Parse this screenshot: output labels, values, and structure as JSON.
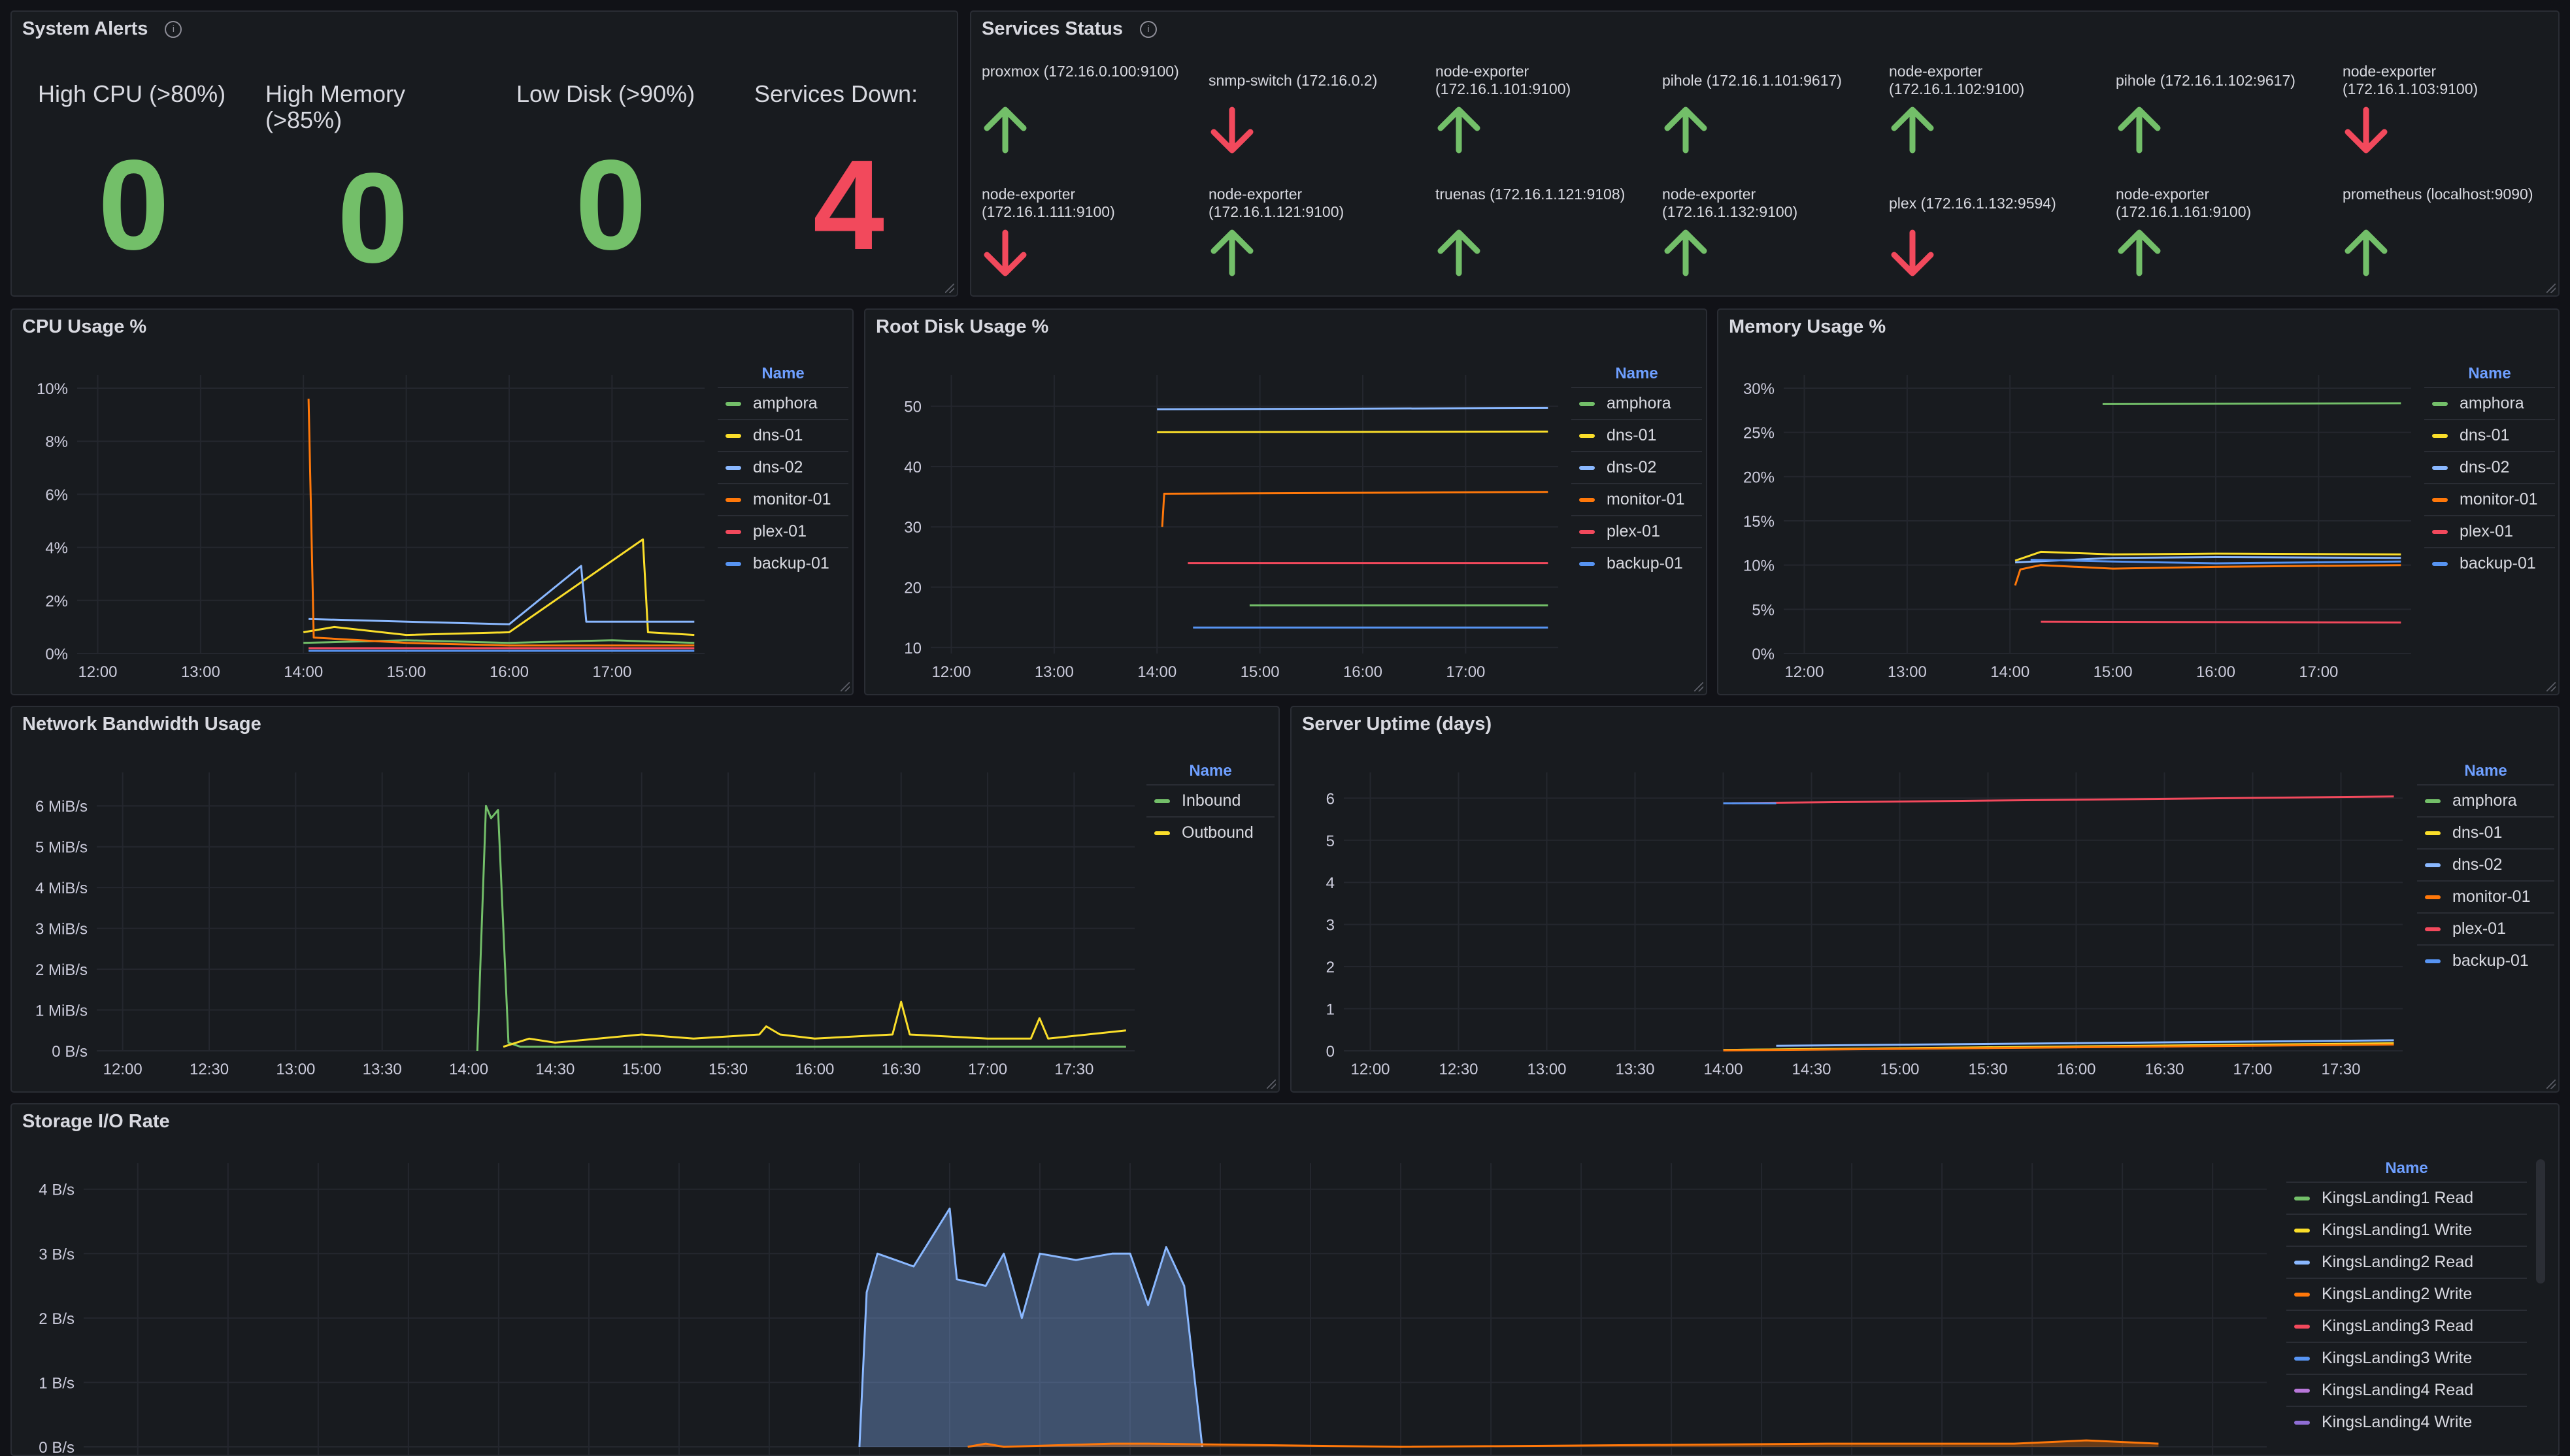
{
  "system_alerts": {
    "title": "System Alerts",
    "items": [
      {
        "label": "High CPU (>80%)",
        "value": "0",
        "color": "#73bf69"
      },
      {
        "label": "High Memory (>85%)",
        "value": "0",
        "color": "#73bf69"
      },
      {
        "label": "Low Disk (>90%)",
        "value": "0",
        "color": "#73bf69"
      },
      {
        "label": "Services Down:",
        "value": "4",
        "color": "#f2495c"
      }
    ]
  },
  "services_status": {
    "title": "Services Status",
    "services": [
      {
        "name": "proxmox (172.16.0.100:9100)",
        "status": "up"
      },
      {
        "name": "snmp-switch (172.16.0.2)",
        "status": "down"
      },
      {
        "name": "node-exporter (172.16.1.101:9100)",
        "status": "up"
      },
      {
        "name": "pihole (172.16.1.101:9617)",
        "status": "up"
      },
      {
        "name": "node-exporter (172.16.1.102:9100)",
        "status": "up"
      },
      {
        "name": "pihole (172.16.1.102:9617)",
        "status": "up"
      },
      {
        "name": "node-exporter (172.16.1.103:9100)",
        "status": "down"
      },
      {
        "name": "node-exporter (172.16.1.111:9100)",
        "status": "down"
      },
      {
        "name": "node-exporter (172.16.1.121:9100)",
        "status": "up"
      },
      {
        "name": "truenas (172.16.1.121:9108)",
        "status": "up"
      },
      {
        "name": "node-exporter (172.16.1.132:9100)",
        "status": "up"
      },
      {
        "name": "plex (172.16.1.132:9594)",
        "status": "down"
      },
      {
        "name": "node-exporter (172.16.1.161:9100)",
        "status": "up"
      },
      {
        "name": "prometheus (localhost:9090)",
        "status": "up"
      }
    ],
    "up_color": "#73bf69",
    "down_color": "#f2495c"
  },
  "chart_data": [
    {
      "id": "cpu",
      "type": "line",
      "title": "CPU Usage %",
      "x_ticks": [
        "12:00",
        "13:00",
        "14:00",
        "15:00",
        "16:00",
        "17:00"
      ],
      "y_ticks": [
        "0%",
        "2%",
        "4%",
        "6%",
        "8%",
        "10%"
      ],
      "ylim": [
        0,
        10
      ],
      "legend_title": "Name",
      "series": [
        {
          "name": "amphora",
          "color": "#73bf69",
          "values": [
            [
              14.0,
              0.4
            ],
            [
              15.0,
              0.5
            ],
            [
              16.0,
              0.4
            ],
            [
              17.0,
              0.5
            ],
            [
              17.8,
              0.4
            ]
          ]
        },
        {
          "name": "dns-01",
          "color": "#fade2a",
          "values": [
            [
              14.0,
              0.8
            ],
            [
              14.3,
              1.0
            ],
            [
              15.0,
              0.7
            ],
            [
              16.0,
              0.8
            ],
            [
              17.3,
              4.3
            ],
            [
              17.35,
              0.8
            ],
            [
              17.8,
              0.7
            ]
          ]
        },
        {
          "name": "dns-02",
          "color": "#8ab8ff",
          "values": [
            [
              14.05,
              1.3
            ],
            [
              15.0,
              1.2
            ],
            [
              16.0,
              1.1
            ],
            [
              16.7,
              3.3
            ],
            [
              16.75,
              1.2
            ],
            [
              17.8,
              1.2
            ]
          ]
        },
        {
          "name": "monitor-01",
          "color": "#ff780a",
          "values": [
            [
              14.05,
              9.6
            ],
            [
              14.1,
              0.6
            ],
            [
              15.0,
              0.4
            ],
            [
              16.0,
              0.3
            ],
            [
              17.8,
              0.3
            ]
          ]
        },
        {
          "name": "plex-01",
          "color": "#f2495c",
          "values": [
            [
              14.05,
              0.2
            ],
            [
              15.0,
              0.2
            ],
            [
              16.0,
              0.2
            ],
            [
              17.8,
              0.2
            ]
          ]
        },
        {
          "name": "backup-01",
          "color": "#5794f2",
          "values": [
            [
              14.05,
              0.1
            ],
            [
              15.0,
              0.1
            ],
            [
              16.0,
              0.1
            ],
            [
              17.8,
              0.1
            ]
          ]
        }
      ]
    },
    {
      "id": "disk",
      "type": "line",
      "title": "Root Disk Usage %",
      "x_ticks": [
        "12:00",
        "13:00",
        "14:00",
        "15:00",
        "16:00",
        "17:00"
      ],
      "y_ticks": [
        "10",
        "20",
        "30",
        "40",
        "50"
      ],
      "ylim": [
        9,
        53
      ],
      "legend_title": "Name",
      "series": [
        {
          "name": "amphora",
          "color": "#73bf69",
          "values": [
            [
              14.9,
              17.0
            ],
            [
              17.8,
              17.0
            ]
          ]
        },
        {
          "name": "dns-01",
          "color": "#fade2a",
          "values": [
            [
              14.0,
              45.7
            ],
            [
              17.8,
              45.8
            ]
          ]
        },
        {
          "name": "dns-02",
          "color": "#8ab8ff",
          "values": [
            [
              14.0,
              49.5
            ],
            [
              17.8,
              49.7
            ]
          ]
        },
        {
          "name": "monitor-01",
          "color": "#ff780a",
          "values": [
            [
              14.05,
              30.0
            ],
            [
              14.07,
              35.5
            ],
            [
              17.8,
              35.8
            ]
          ]
        },
        {
          "name": "plex-01",
          "color": "#f2495c",
          "values": [
            [
              14.3,
              24.0
            ],
            [
              17.8,
              24.0
            ]
          ]
        },
        {
          "name": "backup-01",
          "color": "#5794f2",
          "values": [
            [
              14.35,
              13.3
            ],
            [
              17.8,
              13.3
            ]
          ]
        }
      ]
    },
    {
      "id": "mem",
      "type": "line",
      "title": "Memory Usage %",
      "x_ticks": [
        "12:00",
        "13:00",
        "14:00",
        "15:00",
        "16:00",
        "17:00"
      ],
      "y_ticks": [
        "0%",
        "5%",
        "10%",
        "15%",
        "20%",
        "25%",
        "30%"
      ],
      "ylim": [
        0,
        30
      ],
      "legend_title": "Name",
      "series": [
        {
          "name": "amphora",
          "color": "#73bf69",
          "values": [
            [
              14.9,
              28.2
            ],
            [
              17.8,
              28.3
            ]
          ]
        },
        {
          "name": "dns-01",
          "color": "#fade2a",
          "values": [
            [
              14.05,
              10.5
            ],
            [
              14.3,
              11.5
            ],
            [
              15.0,
              11.2
            ],
            [
              16.0,
              11.3
            ],
            [
              17.8,
              11.2
            ]
          ]
        },
        {
          "name": "dns-02",
          "color": "#8ab8ff",
          "values": [
            [
              14.05,
              10.3
            ],
            [
              15.0,
              10.8
            ],
            [
              16.0,
              10.9
            ],
            [
              17.8,
              10.8
            ]
          ]
        },
        {
          "name": "monitor-01",
          "color": "#ff780a",
          "values": [
            [
              14.05,
              7.7
            ],
            [
              14.1,
              9.5
            ],
            [
              14.3,
              10.0
            ],
            [
              15.0,
              9.6
            ],
            [
              16.0,
              9.8
            ],
            [
              17.8,
              10.0
            ]
          ]
        },
        {
          "name": "plex-01",
          "color": "#f2495c",
          "values": [
            [
              14.3,
              3.6
            ],
            [
              17.8,
              3.5
            ]
          ]
        },
        {
          "name": "backup-01",
          "color": "#5794f2",
          "values": [
            [
              14.2,
              10.6
            ],
            [
              15.0,
              10.4
            ],
            [
              16.0,
              10.2
            ],
            [
              17.8,
              10.4
            ]
          ]
        }
      ]
    },
    {
      "id": "net",
      "type": "line",
      "title": "Network Bandwidth Usage",
      "x_ticks": [
        "12:00",
        "12:30",
        "13:00",
        "13:30",
        "14:00",
        "14:30",
        "15:00",
        "15:30",
        "16:00",
        "16:30",
        "17:00",
        "17:30"
      ],
      "y_ticks": [
        "0 B/s",
        "1 MiB/s",
        "2 MiB/s",
        "3 MiB/s",
        "4 MiB/s",
        "5 MiB/s",
        "6 MiB/s"
      ],
      "ylim": [
        0,
        6.5
      ],
      "legend_title": "Name",
      "series": [
        {
          "name": "Inbound",
          "color": "#73bf69",
          "values": [
            [
              14.05,
              0
            ],
            [
              14.1,
              6.0
            ],
            [
              14.13,
              5.7
            ],
            [
              14.17,
              5.9
            ],
            [
              14.23,
              0.2
            ],
            [
              14.3,
              0.1
            ],
            [
              17.8,
              0.1
            ]
          ]
        },
        {
          "name": "Outbound",
          "color": "#fade2a",
          "values": [
            [
              14.2,
              0.1
            ],
            [
              14.35,
              0.3
            ],
            [
              14.5,
              0.2
            ],
            [
              15.0,
              0.4
            ],
            [
              15.3,
              0.3
            ],
            [
              15.68,
              0.4
            ],
            [
              15.72,
              0.6
            ],
            [
              15.8,
              0.4
            ],
            [
              16.0,
              0.3
            ],
            [
              16.45,
              0.4
            ],
            [
              16.5,
              1.2
            ],
            [
              16.55,
              0.4
            ],
            [
              17.0,
              0.3
            ],
            [
              17.25,
              0.3
            ],
            [
              17.3,
              0.8
            ],
            [
              17.35,
              0.3
            ],
            [
              17.8,
              0.5
            ]
          ]
        }
      ]
    },
    {
      "id": "uptime",
      "type": "line",
      "title": "Server Uptime (days)",
      "x_ticks": [
        "12:00",
        "12:30",
        "13:00",
        "13:30",
        "14:00",
        "14:30",
        "15:00",
        "15:30",
        "16:00",
        "16:30",
        "17:00",
        "17:30"
      ],
      "y_ticks": [
        "0",
        "1",
        "2",
        "3",
        "4",
        "5",
        "6"
      ],
      "ylim": [
        0,
        6.3
      ],
      "legend_title": "Name",
      "series": [
        {
          "name": "amphora",
          "color": "#73bf69",
          "values": [
            [
              14.0,
              0.02
            ],
            [
              17.8,
              0.17
            ]
          ]
        },
        {
          "name": "dns-01",
          "color": "#fade2a",
          "values": [
            [
              14.0,
              0.02
            ],
            [
              17.8,
              0.18
            ]
          ]
        },
        {
          "name": "dns-02",
          "color": "#8ab8ff",
          "values": [
            [
              14.3,
              0.12
            ],
            [
              17.8,
              0.25
            ]
          ]
        },
        {
          "name": "monitor-01",
          "color": "#ff780a",
          "values": [
            [
              14.0,
              0.01
            ],
            [
              17.8,
              0.15
            ]
          ]
        },
        {
          "name": "plex-01",
          "color": "#f2495c",
          "values": [
            [
              14.05,
              5.88
            ],
            [
              17.8,
              6.04
            ]
          ]
        },
        {
          "name": "backup-01",
          "color": "#5794f2",
          "values": [
            [
              14.0,
              5.88
            ],
            [
              14.3,
              5.88
            ]
          ]
        }
      ]
    },
    {
      "id": "storage",
      "type": "area",
      "title": "Storage I/O Rate",
      "y_ticks": [
        "0 B/s",
        "1 B/s",
        "2 B/s",
        "3 B/s",
        "4 B/s"
      ],
      "ylim": [
        0,
        4.2
      ],
      "legend_title": "Name",
      "series": [
        {
          "name": "KingsLanding1 Read",
          "color": "#73bf69",
          "values": []
        },
        {
          "name": "KingsLanding1 Write",
          "color": "#fade2a",
          "values": []
        },
        {
          "name": "KingsLanding2 Read",
          "color": "#8ab8ff",
          "values": [
            [
              14.0,
              0
            ],
            [
              14.02,
              2.4
            ],
            [
              14.05,
              3.0
            ],
            [
              14.1,
              2.9
            ],
            [
              14.15,
              2.8
            ],
            [
              14.25,
              3.7
            ],
            [
              14.27,
              2.6
            ],
            [
              14.35,
              2.5
            ],
            [
              14.4,
              3.0
            ],
            [
              14.45,
              2.0
            ],
            [
              14.5,
              3.0
            ],
            [
              14.6,
              2.9
            ],
            [
              14.7,
              3.0
            ],
            [
              14.75,
              3.0
            ],
            [
              14.8,
              2.2
            ],
            [
              14.85,
              3.1
            ],
            [
              14.9,
              2.5
            ],
            [
              14.95,
              0
            ]
          ]
        },
        {
          "name": "KingsLanding2 Write",
          "color": "#ff780a",
          "values": [
            [
              14.3,
              0
            ],
            [
              14.35,
              0.05
            ],
            [
              14.4,
              0
            ],
            [
              14.7,
              0.05
            ],
            [
              14.8,
              0.05
            ],
            [
              15.5,
              0
            ],
            [
              16.7,
              0.05
            ],
            [
              16.9,
              0.05
            ],
            [
              17.2,
              0.05
            ],
            [
              17.4,
              0.1
            ],
            [
              17.6,
              0.05
            ]
          ]
        },
        {
          "name": "KingsLanding3 Read",
          "color": "#f2495c",
          "values": []
        },
        {
          "name": "KingsLanding3 Write",
          "color": "#5794f2",
          "values": []
        },
        {
          "name": "KingsLanding4 Read",
          "color": "#b877d9",
          "values": []
        },
        {
          "name": "KingsLanding4 Write",
          "color": "#8f6ed5",
          "values": []
        }
      ]
    }
  ]
}
